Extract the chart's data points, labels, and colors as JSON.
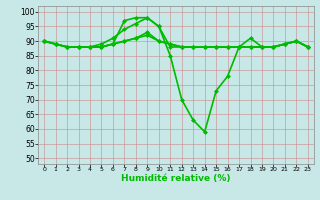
{
  "xlabel": "Humidité relative (%)",
  "bg_color": "#c8e8e8",
  "grid_color": "#cc8888",
  "line_color": "#00bb00",
  "xlim": [
    -0.5,
    23.5
  ],
  "ylim": [
    48,
    102
  ],
  "yticks": [
    50,
    55,
    60,
    65,
    70,
    75,
    80,
    85,
    90,
    95,
    100
  ],
  "xticks": [
    0,
    1,
    2,
    3,
    4,
    5,
    6,
    7,
    8,
    9,
    10,
    11,
    12,
    13,
    14,
    15,
    16,
    17,
    18,
    19,
    20,
    21,
    22,
    23
  ],
  "series": [
    [
      90,
      89,
      88,
      88,
      88,
      88,
      89,
      97,
      98,
      98,
      95,
      85,
      70,
      63,
      59,
      73,
      78,
      88,
      88,
      88,
      88,
      89,
      90,
      88
    ],
    [
      90,
      89,
      88,
      88,
      88,
      88,
      89,
      90,
      91,
      92,
      90,
      89,
      88,
      88,
      88,
      88,
      88,
      88,
      88,
      88,
      88,
      89,
      90,
      88
    ],
    [
      90,
      89,
      88,
      88,
      88,
      88,
      89,
      90,
      91,
      93,
      90,
      89,
      88,
      88,
      88,
      88,
      88,
      88,
      88,
      88,
      88,
      89,
      90,
      88
    ],
    [
      90,
      89,
      88,
      88,
      88,
      89,
      91,
      94,
      96,
      98,
      95,
      88,
      88,
      88,
      88,
      88,
      88,
      88,
      91,
      88,
      88,
      89,
      90,
      88
    ]
  ]
}
